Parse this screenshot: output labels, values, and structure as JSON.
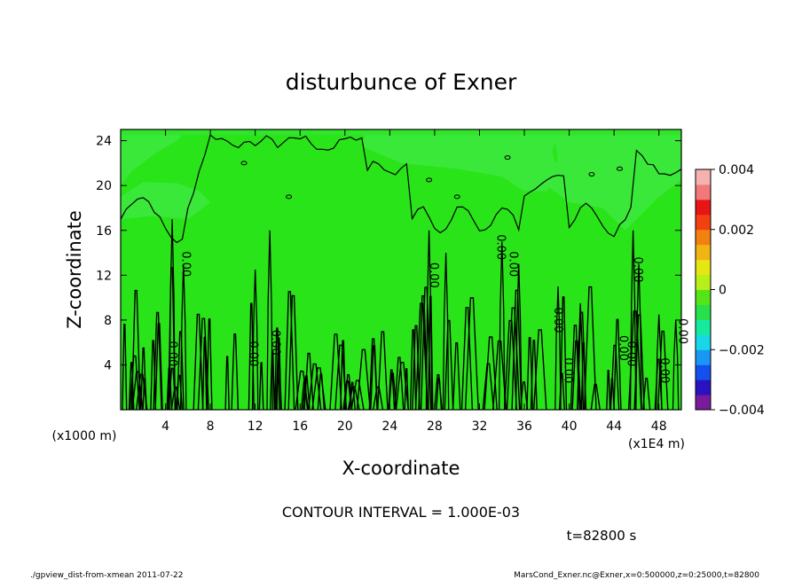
{
  "chart_data": {
    "type": "heatmap",
    "title": "disturbunce of Exner",
    "xlabel": "X-coordinate",
    "ylabel": "Z-coordinate",
    "x_unit_note": "(x1000 m)",
    "x_scale_note": "(x1E4 m)",
    "xlim": [
      0,
      50
    ],
    "ylim": [
      0,
      25
    ],
    "x_ticks": [
      "4",
      "8",
      "12",
      "16",
      "20",
      "24",
      "28",
      "32",
      "36",
      "40",
      "44",
      "48"
    ],
    "y_ticks": [
      "4",
      "8",
      "12",
      "16",
      "20",
      "24"
    ],
    "colorbar": {
      "min": -0.004,
      "max": 0.004,
      "tick_labels": [
        "0.004",
        "0.002",
        "0",
        "−0.002",
        "−0.004"
      ],
      "tick_values": [
        0.004,
        0.002,
        0,
        -0.002,
        -0.004
      ],
      "colors": [
        "#7a1b9c",
        "#2a12c0",
        "#1450ee",
        "#1a96f5",
        "#18d8e8",
        "#15eaa0",
        "#2ae04a",
        "#55e418",
        "#b6f018",
        "#e6e614",
        "#f0b415",
        "#f58012",
        "#f24010",
        "#e81515",
        "#f07a7a",
        "#f5b0b0"
      ]
    },
    "background_value": 0,
    "contour_interval": "1.000E-03",
    "contour_label": "0.00",
    "annotations": {
      "contour_interval_text": "CONTOUR INTERVAL = 1.000E-03",
      "time_text": "t=82800 s"
    }
  },
  "footer": {
    "left": "./gpview_dist-from-xmean  2011-07-22",
    "right": "MarsCond_Exner.nc@Exner,x=0:500000,z=0:25000,t=82800"
  }
}
